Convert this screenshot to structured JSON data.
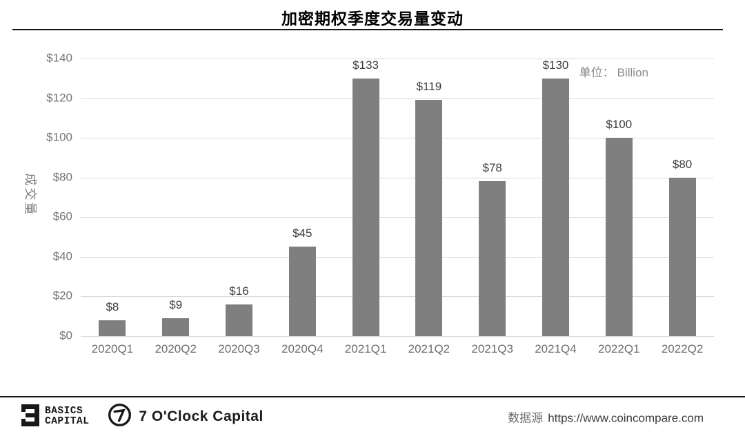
{
  "title": "加密期权季度交易量变动",
  "unit": {
    "prefix": "单位：",
    "value": "Billion"
  },
  "y_axis": {
    "title": "成交量",
    "ticks": [
      "$140",
      "$120",
      "$100",
      "$80",
      "$60",
      "$40",
      "$20",
      "$0"
    ]
  },
  "chart_data": {
    "type": "bar",
    "title": "加密期权季度交易量变动",
    "categories": [
      "2020Q1",
      "2020Q2",
      "2020Q3",
      "2020Q4",
      "2021Q1",
      "2021Q2",
      "2021Q3",
      "2021Q4",
      "2022Q1",
      "2022Q2"
    ],
    "values": [
      8,
      9,
      16,
      45,
      133,
      119,
      78,
      130,
      100,
      80
    ],
    "value_labels": [
      "$8",
      "$9",
      "$16",
      "$45",
      "$133",
      "$119",
      "$78",
      "$130",
      "$100",
      "$80"
    ],
    "xlabel": "",
    "ylabel": "成交量",
    "unit": "Billion",
    "ylim": [
      0,
      140
    ],
    "y_tick_step": 20,
    "grid": true,
    "legend_position": "none",
    "bar_color": "#7f7f7f",
    "gridline_color": "#d9d9d9",
    "value_label_color": "#3d3d3d",
    "axis_label_color": "#757575"
  },
  "footer": {
    "basics_logo": {
      "line1": "BASICS",
      "line2": "CAPITAL"
    },
    "seven_logo_text": "7 O'Clock Capital",
    "source_label": "数据源",
    "source_url": "https://www.coincompare.com"
  }
}
